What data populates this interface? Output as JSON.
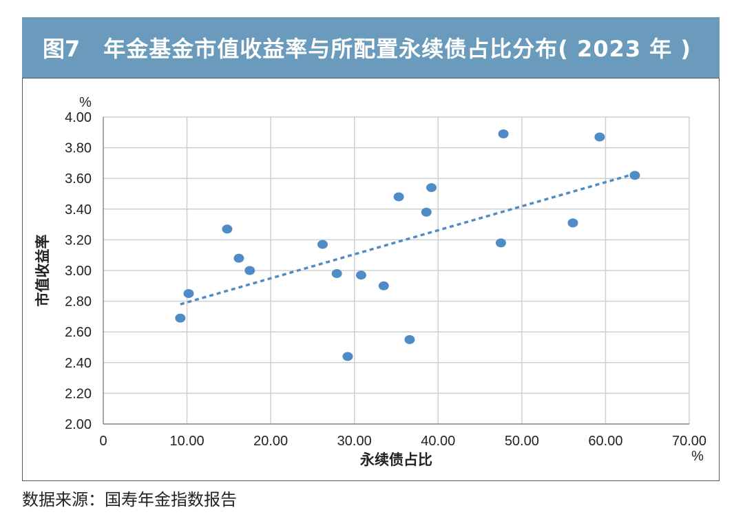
{
  "figure": {
    "label": "图7",
    "title": "年金基金市值收益率与所配置永续债占比分布( 2023 年 )"
  },
  "source": "数据来源：国寿年金指数报告",
  "colors": {
    "title_bar": "#6a9bbd",
    "points": "#4f8bc4",
    "trendline": "#4f8bc4",
    "grid": "#cfcfcf"
  },
  "chart_data": {
    "type": "scatter",
    "xlabel": "永续债占比",
    "ylabel": "市值收益率",
    "x_unit": "%",
    "y_unit": "%",
    "xlim": [
      0,
      70
    ],
    "ylim": [
      2.0,
      4.0
    ],
    "x_ticks": [
      0,
      10,
      20,
      30,
      40,
      50,
      60,
      70
    ],
    "x_tick_labels": [
      "0",
      "10.00",
      "20.00",
      "30.00",
      "40.00",
      "50.00",
      "60.00",
      "70.00"
    ],
    "y_ticks": [
      2.0,
      2.2,
      2.4,
      2.6,
      2.8,
      3.0,
      3.2,
      3.4,
      3.6,
      3.8,
      4.0
    ],
    "y_tick_labels": [
      "2.00",
      "2.20",
      "2.40",
      "2.60",
      "2.80",
      "3.00",
      "3.20",
      "3.40",
      "3.60",
      "3.80",
      "4.00"
    ],
    "grid": true,
    "points": [
      {
        "x": 9.2,
        "y": 2.69
      },
      {
        "x": 10.2,
        "y": 2.85
      },
      {
        "x": 14.8,
        "y": 3.27
      },
      {
        "x": 16.2,
        "y": 3.08
      },
      {
        "x": 17.5,
        "y": 3.0
      },
      {
        "x": 26.2,
        "y": 3.17
      },
      {
        "x": 27.9,
        "y": 2.98
      },
      {
        "x": 29.2,
        "y": 2.44
      },
      {
        "x": 30.8,
        "y": 2.97
      },
      {
        "x": 33.5,
        "y": 2.9
      },
      {
        "x": 35.3,
        "y": 3.48
      },
      {
        "x": 36.6,
        "y": 2.55
      },
      {
        "x": 38.6,
        "y": 3.38
      },
      {
        "x": 39.2,
        "y": 3.54
      },
      {
        "x": 47.5,
        "y": 3.18
      },
      {
        "x": 47.8,
        "y": 3.89
      },
      {
        "x": 56.1,
        "y": 3.31
      },
      {
        "x": 59.3,
        "y": 3.87
      },
      {
        "x": 63.5,
        "y": 3.62
      }
    ],
    "trendline": {
      "x": [
        9.2,
        63.5
      ],
      "y": [
        2.78,
        3.63
      ],
      "style": "dotted"
    }
  }
}
